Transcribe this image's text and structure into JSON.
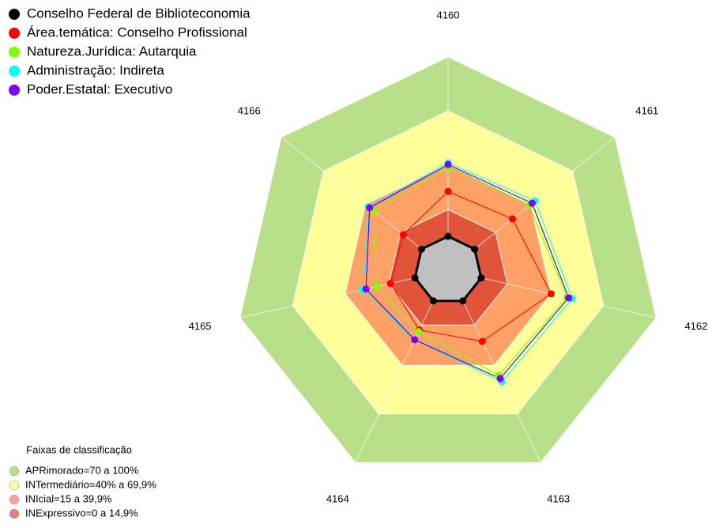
{
  "chart_data": {
    "type": "radar",
    "categories": [
      "4160",
      "4161",
      "4162",
      "4163",
      "4164",
      "4165",
      "4166"
    ],
    "ylim": [
      0,
      100
    ],
    "series": [
      {
        "name": "Conselho Federal de Biblioteconomia",
        "color": "#000000",
        "values": [
          0,
          0,
          0,
          0,
          0,
          0,
          0
        ]
      },
      {
        "name": "Área.temática: Conselho Profissional",
        "color": "#ff0000",
        "values": [
          25,
          27,
          40,
          25,
          18,
          14,
          13
        ]
      },
      {
        "name": "Natureza.Jurídica: Autarquia",
        "color": "#80ff00",
        "values": [
          38,
          39,
          49,
          46,
          19,
          22,
          34
        ]
      },
      {
        "name": "Administração: Indireta",
        "color": "#00ffff",
        "values": [
          41,
          43,
          52,
          50,
          24,
          30,
          38
        ]
      },
      {
        "name": "Poder.Estatal: Executivo",
        "color": "#8000ff",
        "values": [
          40,
          41,
          50,
          48,
          24,
          28,
          37
        ]
      }
    ],
    "bands_title": "Faixas de classificação",
    "bands": [
      {
        "label": "APRimorado=70 a 100%",
        "range": [
          70,
          100
        ],
        "color": "#b8e08a",
        "marker_color": "#b8e08a"
      },
      {
        "label": "INTermediário=40% a 69,9%",
        "range": [
          40,
          69.9
        ],
        "color": "#ffff99",
        "marker_color": "#ffff99"
      },
      {
        "label": "INIcial=15 a 39,9%",
        "range": [
          15,
          39.9
        ],
        "color": "#ffa066",
        "marker_color": "#ffa0a0"
      },
      {
        "label": "INExpressivo=0 a 14,9%",
        "range": [
          0,
          14.9
        ],
        "color": "#e0553a",
        "marker_color": "#e08080"
      }
    ]
  }
}
